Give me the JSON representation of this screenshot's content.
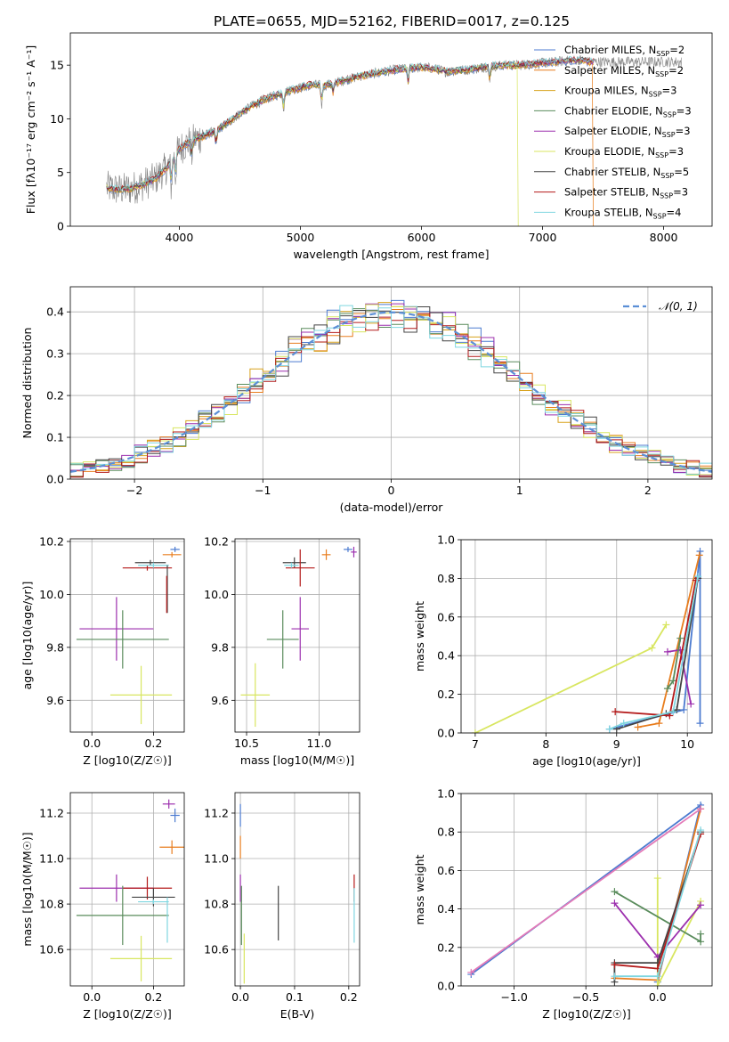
{
  "figure": {
    "title": "PLATE=0655, MJD=52162, FIBERID=0017, z=0.125"
  },
  "series_colors": [
    {
      "name": "Chabrier MILES",
      "nssp": "2",
      "color": "#4c7bd0"
    },
    {
      "name": "Salpeter MILES",
      "nssp": "2",
      "color": "#e87d1e"
    },
    {
      "name": "Kroupa MILES",
      "nssp": "3",
      "color": "#d8a21c"
    },
    {
      "name": "Chabrier ELODIE",
      "nssp": "3",
      "color": "#5a8c5c"
    },
    {
      "name": "Salpeter ELODIE",
      "nssp": "3",
      "color": "#9c2fae"
    },
    {
      "name": "Kroupa ELODIE",
      "nssp": "3",
      "color": "#d8e660"
    },
    {
      "name": "Chabrier STELIB",
      "nssp": "5",
      "color": "#444444"
    },
    {
      "name": "Salpeter STELIB",
      "nssp": "3",
      "color": "#b41a1a"
    },
    {
      "name": "Kroupa STELIB",
      "nssp": "4",
      "color": "#7fd6e0"
    }
  ],
  "chart_data": [
    {
      "id": "spectrum",
      "type": "line",
      "xlabel": "wavelength [Angstrom, rest frame]",
      "ylabel": "Flux [fλ10⁻¹⁷ erg cm⁻² s⁻¹ A⁻¹]",
      "xlim": [
        3100,
        8400
      ],
      "ylim": [
        0,
        18
      ],
      "xticks": [
        4000,
        5000,
        6000,
        7000,
        8000
      ],
      "yticks": [
        0,
        5,
        10,
        15
      ],
      "grid": false,
      "legend_position": "top-right",
      "data_color": "#808080",
      "continuum": [
        [
          3400,
          3.6
        ],
        [
          3500,
          3.4
        ],
        [
          3600,
          3.5
        ],
        [
          3700,
          3.9
        ],
        [
          3800,
          4.4
        ],
        [
          3900,
          5.5
        ],
        [
          4000,
          7.2
        ],
        [
          4100,
          8.0
        ],
        [
          4200,
          8.4
        ],
        [
          4300,
          8.9
        ],
        [
          4400,
          9.6
        ],
        [
          4500,
          10.5
        ],
        [
          4600,
          11.2
        ],
        [
          4700,
          11.8
        ],
        [
          4800,
          12.2
        ],
        [
          4900,
          12.6
        ],
        [
          5000,
          12.9
        ],
        [
          5100,
          13.2
        ],
        [
          5200,
          13.1
        ],
        [
          5300,
          13.4
        ],
        [
          5400,
          13.7
        ],
        [
          5500,
          14.0
        ],
        [
          5600,
          14.2
        ],
        [
          5700,
          14.4
        ],
        [
          5800,
          14.6
        ],
        [
          5900,
          14.7
        ],
        [
          6000,
          14.8
        ],
        [
          6100,
          14.7
        ],
        [
          6200,
          14.4
        ],
        [
          6300,
          14.5
        ],
        [
          6400,
          14.6
        ],
        [
          6500,
          14.8
        ],
        [
          6600,
          14.9
        ],
        [
          6700,
          15.0
        ],
        [
          6800,
          15.0
        ],
        [
          6900,
          15.1
        ],
        [
          7000,
          15.2
        ],
        [
          7100,
          15.3
        ],
        [
          7200,
          15.4
        ],
        [
          7300,
          15.5
        ],
        [
          7400,
          15.3
        ]
      ],
      "data_xrange": [
        3400,
        8150
      ],
      "model_xrange": [
        3400,
        7420
      ],
      "dips": [
        [
          3934,
          2.5
        ],
        [
          3969,
          2.0
        ],
        [
          4102,
          1.5
        ],
        [
          4304,
          1.5
        ],
        [
          4861,
          1.5
        ],
        [
          5175,
          2.0
        ],
        [
          5270,
          1.0
        ],
        [
          5890,
          1.5
        ],
        [
          6563,
          1.5
        ]
      ],
      "model_dropouts": [
        {
          "series": "Kroupa ELODIE",
          "x": 6800
        },
        {
          "series": "Salpeter MILES",
          "x": 7420
        }
      ]
    },
    {
      "id": "residuals",
      "type": "line",
      "xlabel": "(data-model)/error",
      "ylabel": "Normed distribution",
      "xlim": [
        -2.5,
        2.5
      ],
      "ylim": [
        0,
        0.46
      ],
      "xticks": [
        -2,
        -1,
        0,
        1,
        2
      ],
      "yticks": [
        0.0,
        0.1,
        0.2,
        0.3,
        0.4
      ],
      "grid": true,
      "legend_position": "top-right",
      "reference": {
        "label": "𝒩(0, 1)",
        "mean": 0,
        "sigma": 1,
        "color": "#5b8fd6"
      },
      "bin_width": 0.1
    },
    {
      "id": "age-vs-Z",
      "type": "scatter",
      "xlabel": "Z [log10(Z/Z☉)]",
      "ylabel": "age  [log10(age/yr)]",
      "xlim": [
        -0.07,
        0.3
      ],
      "ylim": [
        9.48,
        10.21
      ],
      "xticks": [
        0.0,
        0.2
      ],
      "yticks": [
        9.6,
        9.8,
        10.0,
        10.2
      ],
      "grid": true,
      "points": [
        {
          "series": "Chabrier MILES",
          "x": 0.27,
          "y": 10.17,
          "xerr": 0.015,
          "yerr": 0.01
        },
        {
          "series": "Salpeter MILES",
          "x": 0.26,
          "y": 10.15,
          "xerr": 0.03,
          "yerr": 0.01
        },
        {
          "series": "Kroupa ELODIE",
          "x": 0.16,
          "y": 9.62,
          "xerr": 0.1,
          "yerr": 0.11
        },
        {
          "series": "Salpeter ELODIE",
          "x": 0.08,
          "y": 9.87,
          "xerr": 0.12,
          "yerr": 0.12
        },
        {
          "series": "Chabrier ELODIE",
          "x": 0.1,
          "y": 9.83,
          "xerr": 0.15,
          "yerr": 0.11
        },
        {
          "series": "Chabrier STELIB",
          "x": 0.19,
          "y": 10.12,
          "xerr": 0.05,
          "yerr": 0.01
        },
        {
          "series": "Salpeter STELIB",
          "x": 0.18,
          "y": 10.1,
          "xerr": 0.08,
          "yerr": 0.01
        },
        {
          "series": "Kroupa STELIB",
          "x": 0.2,
          "y": 10.11,
          "xerr": 0.05,
          "yerr": 0.01
        },
        {
          "series": "Chabrier STELIB",
          "x": 0.245,
          "y": 10.02,
          "xerr": 0.0,
          "yerr": 0.09
        },
        {
          "series": "Salpeter STELIB",
          "x": 0.243,
          "y": 10.0,
          "xerr": 0.0,
          "yerr": 0.07
        }
      ]
    },
    {
      "id": "age-vs-mass",
      "type": "scatter",
      "xlabel": "mass [log10(M/M☉)]",
      "ylabel": "",
      "xlim": [
        10.42,
        11.28
      ],
      "ylim": [
        9.48,
        10.21
      ],
      "xticks": [
        10.5,
        11.0
      ],
      "yticks": [
        9.6,
        9.8,
        10.0,
        10.2
      ],
      "grid": true,
      "points": [
        {
          "series": "Kroupa ELODIE",
          "x": 10.56,
          "y": 9.62,
          "xerr": 0.1,
          "yerr": 0.12
        },
        {
          "series": "Chabrier ELODIE",
          "x": 10.75,
          "y": 9.83,
          "xerr": 0.11,
          "yerr": 0.11
        },
        {
          "series": "Salpeter ELODIE",
          "x": 10.87,
          "y": 9.87,
          "xerr": 0.06,
          "yerr": 0.12
        },
        {
          "series": "Chabrier STELIB",
          "x": 10.83,
          "y": 10.12,
          "xerr": 0.08,
          "yerr": 0.02
        },
        {
          "series": "Salpeter STELIB",
          "x": 10.87,
          "y": 10.1,
          "xerr": 0.1,
          "yerr": 0.07
        },
        {
          "series": "Kroupa STELIB",
          "x": 10.81,
          "y": 10.11,
          "xerr": 0.05,
          "yerr": 0.01
        },
        {
          "series": "Salpeter MILES",
          "x": 11.05,
          "y": 10.15,
          "xerr": 0.03,
          "yerr": 0.02
        },
        {
          "series": "Chabrier MILES",
          "x": 11.2,
          "y": 10.17,
          "xerr": 0.03,
          "yerr": 0.01
        },
        {
          "series": "Salpeter ELODIE",
          "x": 11.24,
          "y": 10.16,
          "xerr": 0.02,
          "yerr": 0.02
        }
      ]
    },
    {
      "id": "weight-vs-age",
      "type": "line",
      "xlabel": "age  [log10(age/yr)]",
      "ylabel": "mass weight",
      "xlim": [
        6.8,
        10.35
      ],
      "ylim": [
        0,
        1.0
      ],
      "xticks": [
        7,
        8,
        9,
        10
      ],
      "yticks": [
        0.0,
        0.2,
        0.4,
        0.6,
        0.8,
        1.0
      ],
      "grid": true,
      "series": [
        {
          "name": "Chabrier MILES",
          "points": [
            [
              8.9,
              0.02
            ],
            [
              9.95,
              0.12
            ],
            [
              10.18,
              0.94
            ],
            [
              10.18,
              0.05
            ]
          ]
        },
        {
          "name": "Salpeter MILES",
          "points": [
            [
              9.3,
              0.03
            ],
            [
              9.6,
              0.05
            ],
            [
              10.17,
              0.92
            ]
          ]
        },
        {
          "name": "Kroupa ELODIE",
          "points": [
            [
              7.0,
              0.0
            ],
            [
              9.5,
              0.44
            ],
            [
              9.7,
              0.56
            ]
          ]
        },
        {
          "name": "Salpeter ELODIE",
          "points": [
            [
              9.72,
              0.42
            ],
            [
              9.9,
              0.43
            ],
            [
              10.05,
              0.15
            ]
          ]
        },
        {
          "name": "Chabrier ELODIE",
          "points": [
            [
              9.72,
              0.23
            ],
            [
              9.8,
              0.27
            ],
            [
              9.9,
              0.49
            ]
          ]
        },
        {
          "name": "Chabrier STELIB",
          "points": [
            [
              9.0,
              0.02
            ],
            [
              9.7,
              0.1
            ],
            [
              9.85,
              0.12
            ],
            [
              10.15,
              0.8
            ]
          ]
        },
        {
          "name": "Salpeter STELIB",
          "points": [
            [
              8.98,
              0.11
            ],
            [
              9.75,
              0.09
            ],
            [
              10.12,
              0.79
            ]
          ]
        },
        {
          "name": "Kroupa STELIB",
          "points": [
            [
              8.9,
              0.02
            ],
            [
              9.1,
              0.05
            ],
            [
              9.8,
              0.11
            ],
            [
              10.15,
              0.81
            ]
          ]
        }
      ]
    },
    {
      "id": "mass-vs-Z",
      "type": "scatter",
      "xlabel": "Z [log10(Z/Z☉)]",
      "ylabel": "mass [log10(M/M☉)]",
      "xlim": [
        -0.07,
        0.3
      ],
      "ylim": [
        10.44,
        11.29
      ],
      "xticks": [
        0.0,
        0.2
      ],
      "yticks": [
        10.6,
        10.8,
        11.0,
        11.2
      ],
      "grid": true,
      "points": [
        {
          "series": "Salpeter ELODIE",
          "x": 0.08,
          "y": 10.87,
          "xerr": 0.12,
          "yerr": 0.06
        },
        {
          "series": "Salpeter STELIB",
          "x": 0.18,
          "y": 10.87,
          "xerr": 0.08,
          "yerr": 0.05
        },
        {
          "series": "Chabrier STELIB",
          "x": 0.2,
          "y": 10.83,
          "xerr": 0.07,
          "yerr": 0.04
        },
        {
          "series": "Kroupa STELIB",
          "x": 0.2,
          "y": 10.81,
          "xerr": 0.05,
          "yerr": 0.01
        },
        {
          "series": "Chabrier ELODIE",
          "x": 0.1,
          "y": 10.75,
          "xerr": 0.15,
          "yerr": 0.13
        },
        {
          "series": "Kroupa ELODIE",
          "x": 0.16,
          "y": 10.56,
          "xerr": 0.1,
          "yerr": 0.1
        },
        {
          "series": "Salpeter MILES",
          "x": 0.26,
          "y": 11.05,
          "xerr": 0.04,
          "yerr": 0.03
        },
        {
          "series": "Chabrier MILES",
          "x": 0.27,
          "y": 11.19,
          "xerr": 0.015,
          "yerr": 0.03
        },
        {
          "series": "Salpeter ELODIE",
          "x": 0.25,
          "y": 11.24,
          "xerr": 0.02,
          "yerr": 0.02
        },
        {
          "series": "Kroupa STELIB",
          "x": 0.245,
          "y": 10.73,
          "xerr": 0.0,
          "yerr": 0.1
        }
      ]
    },
    {
      "id": "mass-vs-EBV",
      "type": "scatter",
      "xlabel": "E(B-V)",
      "ylabel": "",
      "xlim": [
        -0.01,
        0.22
      ],
      "ylim": [
        10.44,
        11.29
      ],
      "xticks": [
        0.0,
        0.1,
        0.2
      ],
      "yticks": [
        10.6,
        10.8,
        11.0,
        11.2
      ],
      "grid": true,
      "points": [
        {
          "series": "Chabrier MILES",
          "x": 0.0,
          "y": 11.19,
          "xerr": 0.0,
          "yerr": 0.05
        },
        {
          "series": "Salpeter MILES",
          "x": 0.0,
          "y": 11.05,
          "xerr": 0.0,
          "yerr": 0.05
        },
        {
          "series": "Salpeter ELODIE",
          "x": 0.0,
          "y": 10.87,
          "xerr": 0.0,
          "yerr": 0.06
        },
        {
          "series": "Chabrier ELODIE",
          "x": 0.002,
          "y": 10.75,
          "xerr": 0.0,
          "yerr": 0.13
        },
        {
          "series": "Kroupa ELODIE",
          "x": 0.007,
          "y": 10.56,
          "xerr": 0.0,
          "yerr": 0.11
        },
        {
          "series": "Chabrier STELIB",
          "x": 0.07,
          "y": 10.76,
          "xerr": 0.0,
          "yerr": 0.12
        },
        {
          "series": "Salpeter STELIB",
          "x": 0.21,
          "y": 10.87,
          "xerr": 0.0,
          "yerr": 0.06
        },
        {
          "series": "Kroupa STELIB",
          "x": 0.21,
          "y": 10.75,
          "xerr": 0.0,
          "yerr": 0.12
        }
      ]
    },
    {
      "id": "weight-vs-Z",
      "type": "line",
      "xlabel": "Z [log10(Z/Z☉)]",
      "ylabel": "mass weight",
      "xlim": [
        -1.37,
        0.38
      ],
      "ylim": [
        0,
        1.0
      ],
      "xticks": [
        -1.0,
        -0.5,
        0.0
      ],
      "yticks": [
        0.0,
        0.2,
        0.4,
        0.6,
        0.8,
        1.0
      ],
      "grid": true,
      "series": [
        {
          "name": "Chabrier MILES",
          "points": [
            [
              -1.3,
              0.06
            ],
            [
              0.3,
              0.94
            ],
            [
              0.0,
              0.02
            ]
          ]
        },
        {
          "name": "Salpeter MILES",
          "points": [
            [
              -0.3,
              0.04
            ],
            [
              0.0,
              0.03
            ],
            [
              0.3,
              0.92
            ]
          ]
        },
        {
          "name": "Kroupa ELODIE",
          "points": [
            [
              0.0,
              0.56
            ],
            [
              0.0,
              0.0
            ],
            [
              0.3,
              0.44
            ]
          ]
        },
        {
          "name": "Salpeter ELODIE",
          "points": [
            [
              -0.3,
              0.43
            ],
            [
              0.0,
              0.15
            ],
            [
              0.3,
              0.42
            ]
          ]
        },
        {
          "name": "Chabrier ELODIE",
          "points": [
            [
              -0.3,
              0.49
            ],
            [
              0.3,
              0.23
            ],
            [
              0.3,
              0.27
            ]
          ]
        },
        {
          "name": "Chabrier STELIB",
          "points": [
            [
              -0.3,
              0.02
            ],
            [
              -0.3,
              0.12
            ],
            [
              0.0,
              0.12
            ],
            [
              0.3,
              0.8
            ]
          ]
        },
        {
          "name": "Salpeter STELIB",
          "points": [
            [
              -0.3,
              0.11
            ],
            [
              0.0,
              0.09
            ],
            [
              0.3,
              0.79
            ]
          ]
        },
        {
          "name": "Kroupa STELIB",
          "points": [
            [
              -0.3,
              0.05
            ],
            [
              0.0,
              0.05
            ],
            [
              0.3,
              0.81
            ]
          ]
        },
        {
          "name": "Salpeter ELODIE",
          "points": [
            [
              -1.3,
              0.07
            ],
            [
              0.3,
              0.92
            ]
          ],
          "color": "#e47ab8"
        }
      ]
    }
  ]
}
